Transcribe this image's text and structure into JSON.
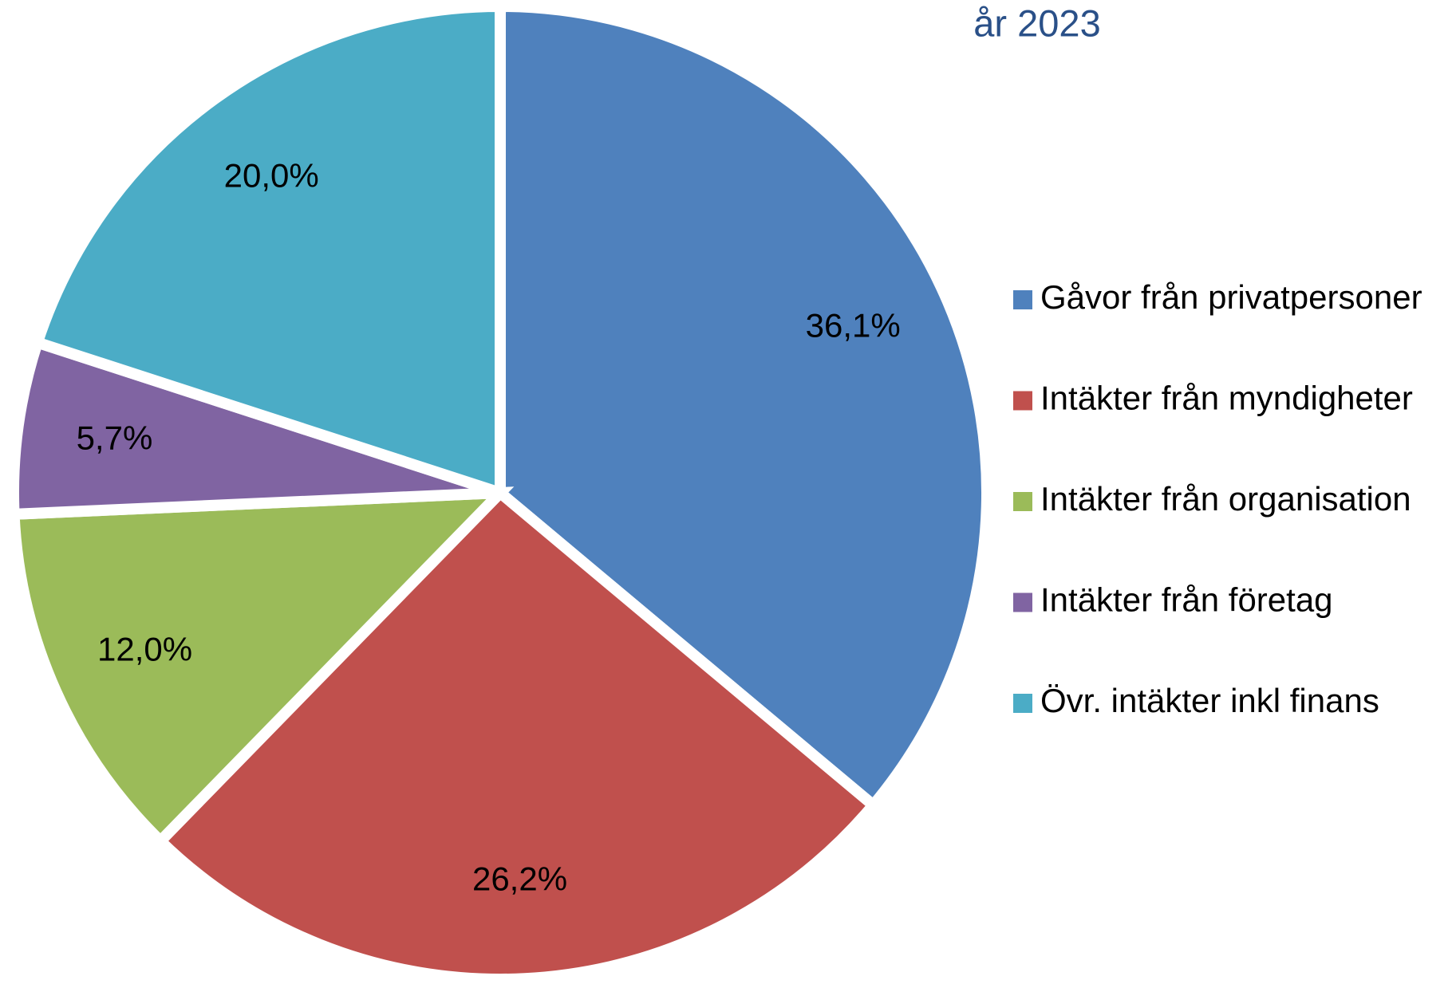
{
  "chart_data": {
    "type": "pie",
    "title": "år 2023",
    "categories": [
      "Gåvor från privatpersoner",
      "Intäkter från myndigheter",
      "Intäkter från organisation",
      "Intäkter från företag",
      "Övr. intäkter inkl finans"
    ],
    "values": [
      36.1,
      26.2,
      12.0,
      5.7,
      20.0
    ],
    "value_labels": [
      "36,1%",
      "26,2%",
      "12,0%",
      "5,7%",
      "20,0%"
    ],
    "colors": [
      "#4f81bd",
      "#c0504d",
      "#9bbb59",
      "#8064a2",
      "#4bacc6"
    ],
    "legend": "right"
  }
}
